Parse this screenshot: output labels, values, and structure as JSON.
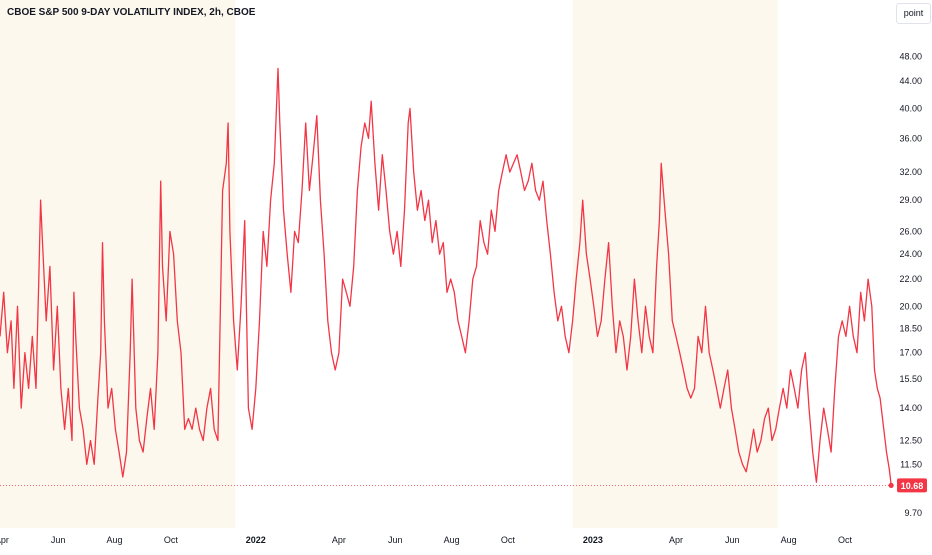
{
  "title": "CBOE S&P 500 9-DAY VOLATILITY INDEX, 2h, CBOE",
  "scale_button": "point",
  "colors": {
    "line": "#f23645",
    "highlight": "#fdf8ee",
    "axis_text": "#131722",
    "last_price_bg": "#f23645"
  },
  "chart_data": {
    "type": "line",
    "title": "CBOE S&P 500 9-DAY VOLATILITY INDEX, 2h, CBOE",
    "xlabel": "",
    "ylabel": "",
    "y_scale": "log",
    "ylim": [
      9.2,
      53
    ],
    "xlim": [
      "2021-03-30",
      "2023-11-22"
    ],
    "grid": false,
    "y_ticks": [
      9.7,
      11.5,
      12.5,
      14.0,
      15.5,
      17.0,
      18.5,
      20.0,
      22.0,
      24.0,
      26.0,
      29.0,
      32.0,
      36.0,
      40.0,
      44.0,
      48.0
    ],
    "y_tick_labels": [
      "9.70",
      "11.50",
      "12.50",
      "14.00",
      "15.50",
      "17.00",
      "18.50",
      "20.00",
      "22.00",
      "24.00",
      "26.00",
      "29.00",
      "32.00",
      "36.00",
      "40.00",
      "44.00",
      "48.00"
    ],
    "x_ticks": [
      {
        "date": "2021-04-01",
        "label": "Apr"
      },
      {
        "date": "2021-06-01",
        "label": "Jun"
      },
      {
        "date": "2021-08-01",
        "label": "Aug"
      },
      {
        "date": "2021-10-01",
        "label": "Oct"
      },
      {
        "date": "2022-01-01",
        "label": "2022"
      },
      {
        "date": "2022-04-01",
        "label": "Apr"
      },
      {
        "date": "2022-06-01",
        "label": "Jun"
      },
      {
        "date": "2022-08-01",
        "label": "Aug"
      },
      {
        "date": "2022-10-01",
        "label": "Oct"
      },
      {
        "date": "2023-01-01",
        "label": "2023"
      },
      {
        "date": "2023-04-01",
        "label": "Apr"
      },
      {
        "date": "2023-06-01",
        "label": "Jun"
      },
      {
        "date": "2023-08-01",
        "label": "Aug"
      },
      {
        "date": "2023-10-01",
        "label": "Oct"
      }
    ],
    "shaded_periods": [
      [
        "2021-03-30",
        "2021-12-10"
      ],
      [
        "2022-12-10",
        "2023-07-20"
      ]
    ],
    "series": [
      {
        "values": [
          [
            "2021-03-30",
            18
          ],
          [
            "2021-04-03",
            21
          ],
          [
            "2021-04-07",
            17
          ],
          [
            "2021-04-11",
            19
          ],
          [
            "2021-04-14",
            15
          ],
          [
            "2021-04-18",
            20
          ],
          [
            "2021-04-22",
            14
          ],
          [
            "2021-04-26",
            17
          ],
          [
            "2021-04-30",
            15
          ],
          [
            "2021-05-04",
            18
          ],
          [
            "2021-05-08",
            15
          ],
          [
            "2021-05-11",
            22
          ],
          [
            "2021-05-13",
            29
          ],
          [
            "2021-05-15",
            25
          ],
          [
            "2021-05-19",
            19
          ],
          [
            "2021-05-23",
            23
          ],
          [
            "2021-05-27",
            16
          ],
          [
            "2021-05-31",
            20
          ],
          [
            "2021-06-04",
            15
          ],
          [
            "2021-06-08",
            13
          ],
          [
            "2021-06-12",
            15
          ],
          [
            "2021-06-16",
            12.5
          ],
          [
            "2021-06-18",
            21
          ],
          [
            "2021-06-20",
            18
          ],
          [
            "2021-06-24",
            14
          ],
          [
            "2021-06-28",
            13
          ],
          [
            "2021-07-02",
            11.5
          ],
          [
            "2021-07-06",
            12.5
          ],
          [
            "2021-07-10",
            11.5
          ],
          [
            "2021-07-14",
            14.5
          ],
          [
            "2021-07-17",
            17
          ],
          [
            "2021-07-19",
            25
          ],
          [
            "2021-07-21",
            19
          ],
          [
            "2021-07-25",
            14
          ],
          [
            "2021-07-29",
            15
          ],
          [
            "2021-08-02",
            13
          ],
          [
            "2021-08-06",
            12
          ],
          [
            "2021-08-10",
            11
          ],
          [
            "2021-08-14",
            12
          ],
          [
            "2021-08-18",
            17
          ],
          [
            "2021-08-20",
            22
          ],
          [
            "2021-08-24",
            14
          ],
          [
            "2021-08-28",
            12.5
          ],
          [
            "2021-09-01",
            12
          ],
          [
            "2021-09-05",
            13.5
          ],
          [
            "2021-09-09",
            15
          ],
          [
            "2021-09-13",
            13
          ],
          [
            "2021-09-17",
            17
          ],
          [
            "2021-09-20",
            31
          ],
          [
            "2021-09-22",
            23
          ],
          [
            "2021-09-26",
            19
          ],
          [
            "2021-09-30",
            26
          ],
          [
            "2021-10-04",
            24
          ],
          [
            "2021-10-08",
            19
          ],
          [
            "2021-10-12",
            17
          ],
          [
            "2021-10-16",
            13
          ],
          [
            "2021-10-20",
            13.5
          ],
          [
            "2021-10-24",
            13
          ],
          [
            "2021-10-28",
            14
          ],
          [
            "2021-11-01",
            13
          ],
          [
            "2021-11-05",
            12.5
          ],
          [
            "2021-11-09",
            14
          ],
          [
            "2021-11-13",
            15
          ],
          [
            "2021-11-17",
            13
          ],
          [
            "2021-11-21",
            12.5
          ],
          [
            "2021-11-26",
            30
          ],
          [
            "2021-11-30",
            33
          ],
          [
            "2021-12-02",
            38
          ],
          [
            "2021-12-04",
            26
          ],
          [
            "2021-12-08",
            19
          ],
          [
            "2021-12-12",
            16
          ],
          [
            "2021-12-16",
            20
          ],
          [
            "2021-12-20",
            27
          ],
          [
            "2021-12-24",
            14
          ],
          [
            "2021-12-28",
            13
          ],
          [
            "2022-01-01",
            15
          ],
          [
            "2022-01-05",
            19
          ],
          [
            "2022-01-09",
            26
          ],
          [
            "2022-01-13",
            23
          ],
          [
            "2022-01-17",
            29
          ],
          [
            "2022-01-21",
            33
          ],
          [
            "2022-01-25",
            46
          ],
          [
            "2022-01-27",
            38
          ],
          [
            "2022-01-31",
            28
          ],
          [
            "2022-02-04",
            24
          ],
          [
            "2022-02-08",
            21
          ],
          [
            "2022-02-12",
            26
          ],
          [
            "2022-02-16",
            25
          ],
          [
            "2022-02-20",
            30
          ],
          [
            "2022-02-24",
            38
          ],
          [
            "2022-02-28",
            30
          ],
          [
            "2022-03-04",
            34
          ],
          [
            "2022-03-08",
            39
          ],
          [
            "2022-03-12",
            29
          ],
          [
            "2022-03-16",
            24
          ],
          [
            "2022-03-20",
            19
          ],
          [
            "2022-03-24",
            17
          ],
          [
            "2022-03-28",
            16
          ],
          [
            "2022-04-01",
            17
          ],
          [
            "2022-04-05",
            22
          ],
          [
            "2022-04-09",
            21
          ],
          [
            "2022-04-13",
            20
          ],
          [
            "2022-04-17",
            23
          ],
          [
            "2022-04-21",
            30
          ],
          [
            "2022-04-25",
            35
          ],
          [
            "2022-04-29",
            38
          ],
          [
            "2022-05-03",
            36
          ],
          [
            "2022-05-06",
            41
          ],
          [
            "2022-05-10",
            33
          ],
          [
            "2022-05-14",
            28
          ],
          [
            "2022-05-18",
            34
          ],
          [
            "2022-05-22",
            30
          ],
          [
            "2022-05-26",
            26
          ],
          [
            "2022-05-30",
            24
          ],
          [
            "2022-06-03",
            26
          ],
          [
            "2022-06-07",
            23
          ],
          [
            "2022-06-11",
            28
          ],
          [
            "2022-06-15",
            38
          ],
          [
            "2022-06-17",
            40
          ],
          [
            "2022-06-21",
            32
          ],
          [
            "2022-06-25",
            28
          ],
          [
            "2022-06-29",
            30
          ],
          [
            "2022-07-03",
            27
          ],
          [
            "2022-07-07",
            29
          ],
          [
            "2022-07-11",
            25
          ],
          [
            "2022-07-15",
            27
          ],
          [
            "2022-07-19",
            24
          ],
          [
            "2022-07-23",
            25
          ],
          [
            "2022-07-27",
            21
          ],
          [
            "2022-07-31",
            22
          ],
          [
            "2022-08-04",
            21
          ],
          [
            "2022-08-08",
            19
          ],
          [
            "2022-08-12",
            18
          ],
          [
            "2022-08-16",
            17
          ],
          [
            "2022-08-20",
            19
          ],
          [
            "2022-08-24",
            22
          ],
          [
            "2022-08-28",
            23
          ],
          [
            "2022-09-01",
            27
          ],
          [
            "2022-09-05",
            25
          ],
          [
            "2022-09-09",
            24
          ],
          [
            "2022-09-13",
            28
          ],
          [
            "2022-09-17",
            26
          ],
          [
            "2022-09-21",
            30
          ],
          [
            "2022-09-25",
            32
          ],
          [
            "2022-09-29",
            34
          ],
          [
            "2022-10-03",
            32
          ],
          [
            "2022-10-07",
            33
          ],
          [
            "2022-10-11",
            34
          ],
          [
            "2022-10-15",
            32
          ],
          [
            "2022-10-19",
            30
          ],
          [
            "2022-10-23",
            31
          ],
          [
            "2022-10-27",
            33
          ],
          [
            "2022-10-31",
            30
          ],
          [
            "2022-11-04",
            29
          ],
          [
            "2022-11-08",
            31
          ],
          [
            "2022-11-12",
            27
          ],
          [
            "2022-11-16",
            24
          ],
          [
            "2022-11-20",
            21
          ],
          [
            "2022-11-24",
            19
          ],
          [
            "2022-11-28",
            20
          ],
          [
            "2022-12-02",
            18
          ],
          [
            "2022-12-06",
            17
          ],
          [
            "2022-12-10",
            19
          ],
          [
            "2022-12-14",
            22
          ],
          [
            "2022-12-18",
            25
          ],
          [
            "2022-12-21",
            29
          ],
          [
            "2022-12-25",
            24
          ],
          [
            "2022-12-29",
            22
          ],
          [
            "2023-01-02",
            20
          ],
          [
            "2023-01-06",
            18
          ],
          [
            "2023-01-10",
            19
          ],
          [
            "2023-01-14",
            22
          ],
          [
            "2023-01-18",
            25
          ],
          [
            "2023-01-22",
            20
          ],
          [
            "2023-01-26",
            17
          ],
          [
            "2023-01-30",
            19
          ],
          [
            "2023-02-03",
            18
          ],
          [
            "2023-02-07",
            16
          ],
          [
            "2023-02-11",
            18
          ],
          [
            "2023-02-15",
            22
          ],
          [
            "2023-02-19",
            19
          ],
          [
            "2023-02-23",
            17
          ],
          [
            "2023-02-27",
            20
          ],
          [
            "2023-03-03",
            18
          ],
          [
            "2023-03-07",
            17
          ],
          [
            "2023-03-11",
            23
          ],
          [
            "2023-03-14",
            27
          ],
          [
            "2023-03-16",
            33
          ],
          [
            "2023-03-20",
            28
          ],
          [
            "2023-03-24",
            24
          ],
          [
            "2023-03-28",
            19
          ],
          [
            "2023-04-01",
            18
          ],
          [
            "2023-04-05",
            17
          ],
          [
            "2023-04-09",
            16
          ],
          [
            "2023-04-13",
            15
          ],
          [
            "2023-04-17",
            14.5
          ],
          [
            "2023-04-21",
            15
          ],
          [
            "2023-04-25",
            18
          ],
          [
            "2023-04-29",
            17
          ],
          [
            "2023-05-03",
            20
          ],
          [
            "2023-05-07",
            17
          ],
          [
            "2023-05-11",
            16
          ],
          [
            "2023-05-15",
            15
          ],
          [
            "2023-05-19",
            14
          ],
          [
            "2023-05-23",
            15
          ],
          [
            "2023-05-27",
            16
          ],
          [
            "2023-05-31",
            14
          ],
          [
            "2023-06-04",
            13
          ],
          [
            "2023-06-08",
            12
          ],
          [
            "2023-06-12",
            11.5
          ],
          [
            "2023-06-16",
            11.2
          ],
          [
            "2023-06-20",
            12
          ],
          [
            "2023-06-24",
            13
          ],
          [
            "2023-06-28",
            12
          ],
          [
            "2023-07-02",
            12.5
          ],
          [
            "2023-07-06",
            13.5
          ],
          [
            "2023-07-10",
            14
          ],
          [
            "2023-07-14",
            12.5
          ],
          [
            "2023-07-18",
            13
          ],
          [
            "2023-07-22",
            14
          ],
          [
            "2023-07-26",
            15
          ],
          [
            "2023-07-30",
            14
          ],
          [
            "2023-08-03",
            16
          ],
          [
            "2023-08-07",
            15
          ],
          [
            "2023-08-11",
            14
          ],
          [
            "2023-08-15",
            16
          ],
          [
            "2023-08-19",
            17
          ],
          [
            "2023-08-23",
            14
          ],
          [
            "2023-08-27",
            12
          ],
          [
            "2023-08-31",
            10.8
          ],
          [
            "2023-09-04",
            12.5
          ],
          [
            "2023-09-08",
            14
          ],
          [
            "2023-09-12",
            13
          ],
          [
            "2023-09-16",
            12
          ],
          [
            "2023-09-20",
            15
          ],
          [
            "2023-09-24",
            18
          ],
          [
            "2023-09-28",
            19
          ],
          [
            "2023-10-02",
            18
          ],
          [
            "2023-10-06",
            20
          ],
          [
            "2023-10-10",
            18
          ],
          [
            "2023-10-14",
            17
          ],
          [
            "2023-10-18",
            21
          ],
          [
            "2023-10-22",
            19
          ],
          [
            "2023-10-26",
            22
          ],
          [
            "2023-10-30",
            20
          ],
          [
            "2023-11-02",
            16
          ],
          [
            "2023-11-05",
            15
          ],
          [
            "2023-11-08",
            14.5
          ],
          [
            "2023-11-12",
            13
          ],
          [
            "2023-11-15",
            12
          ],
          [
            "2023-11-18",
            11.3
          ],
          [
            "2023-11-20",
            10.68
          ]
        ]
      }
    ],
    "last_value": 10.68,
    "last_value_label": "10.68"
  }
}
